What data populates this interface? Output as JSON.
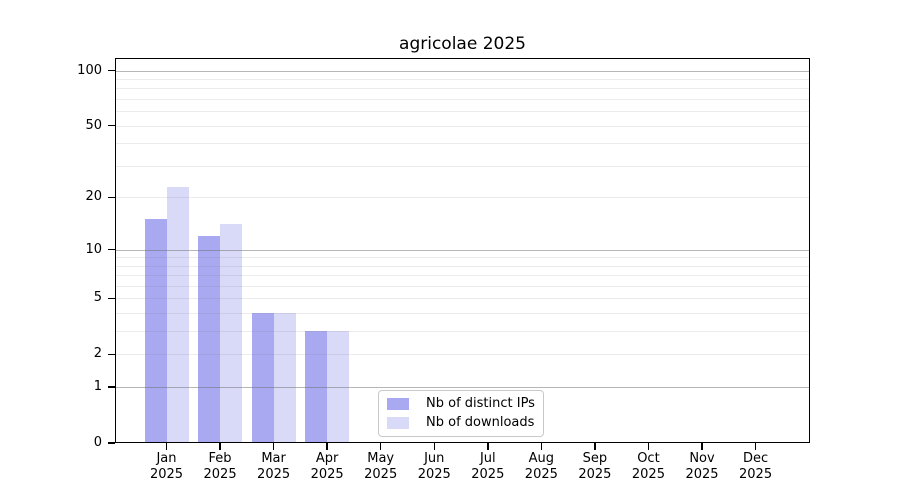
{
  "chart_data": {
    "type": "bar",
    "title": "agricolae 2025",
    "categories": [
      "Jan 2025",
      "Feb 2025",
      "Mar 2025",
      "Apr 2025",
      "May 2025",
      "Jun 2025",
      "Jul 2025",
      "Aug 2025",
      "Sep 2025",
      "Oct 2025",
      "Nov 2025",
      "Dec 2025"
    ],
    "series": [
      {
        "name": "Nb of distinct IPs",
        "color": "#a9a9f2",
        "values": [
          15,
          12,
          4,
          3,
          0,
          0,
          0,
          0,
          0,
          0,
          0,
          0
        ]
      },
      {
        "name": "Nb of downloads",
        "color": "#d9d9f8",
        "values": [
          23,
          14,
          4,
          3,
          0,
          0,
          0,
          0,
          0,
          0,
          0,
          0
        ]
      }
    ],
    "xlabel": "",
    "ylabel": "",
    "yticks": [
      0,
      1,
      2,
      5,
      10,
      20,
      50,
      100
    ],
    "yscale": "log10(1+y)",
    "ylim": [
      0,
      116
    ],
    "grid": "horizontal, minor lines at 2-9 and 20-90, major lines at 1, 10, 100",
    "legend_position": "bottom-center inside plot",
    "spine_color": "#000000",
    "background_color": "#ffffff"
  }
}
